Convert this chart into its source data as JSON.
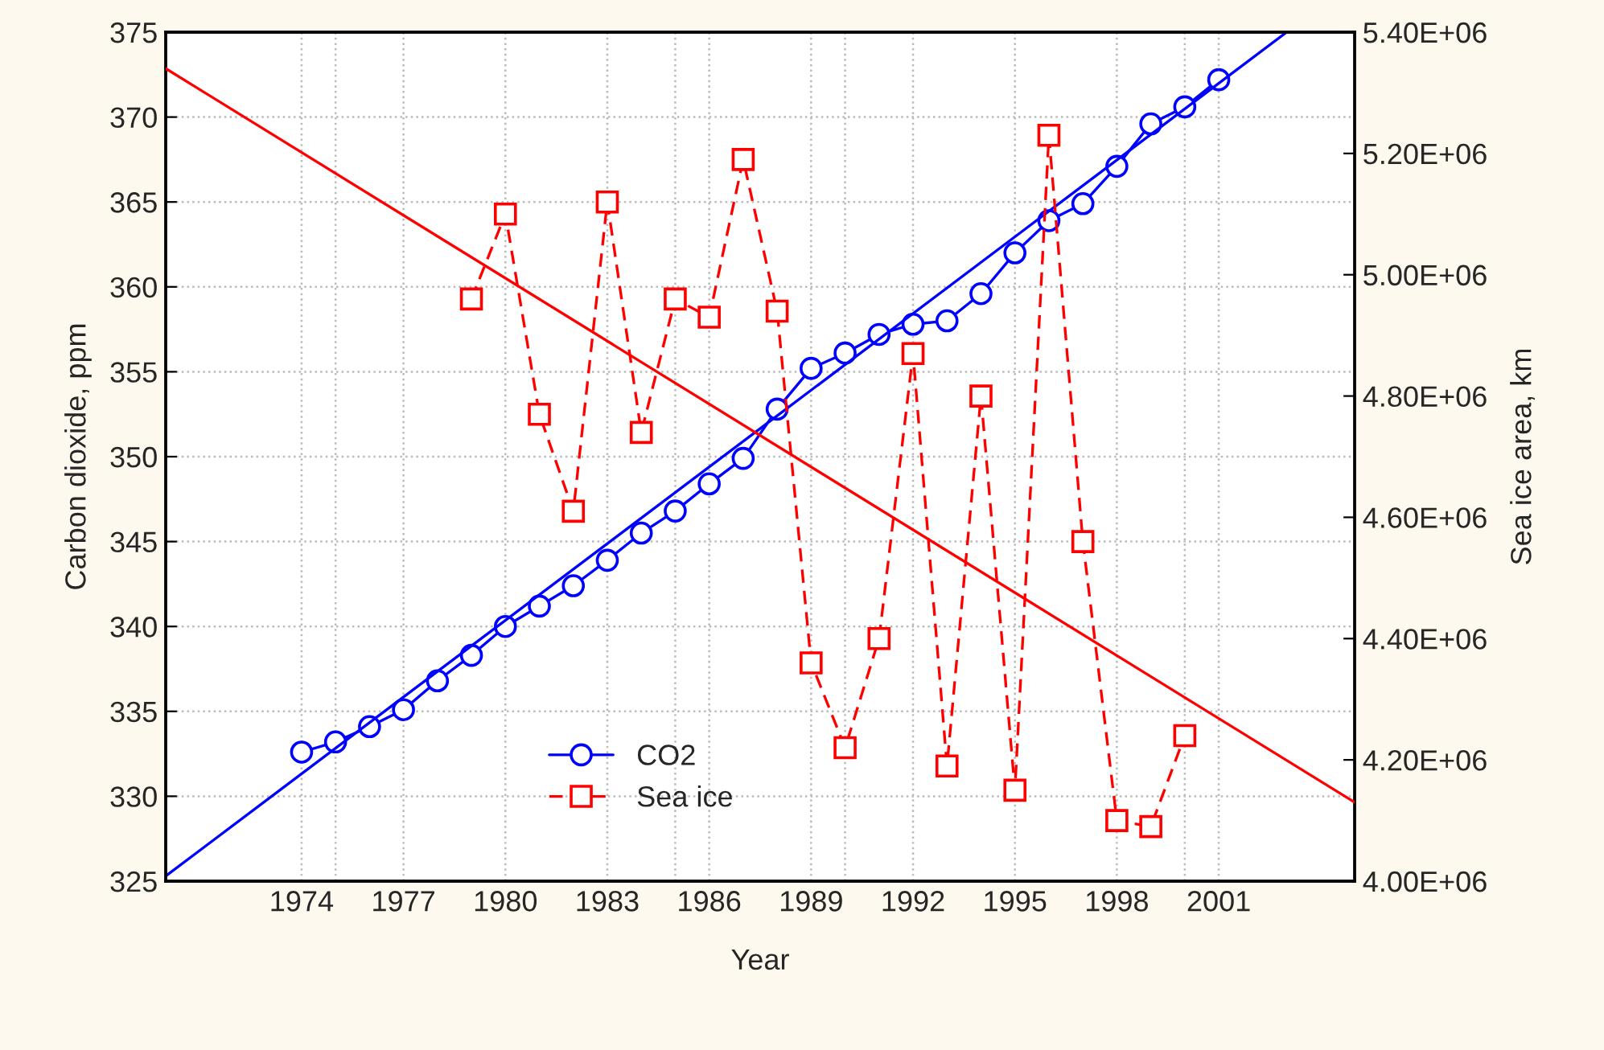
{
  "chart_data": {
    "type": "line",
    "xlabel": "Year",
    "ylabel": "Carbon dioxide, ppm",
    "y2label": "Sea ice area, km",
    "xlim": [
      1970,
      2005
    ],
    "xticks": [
      1974,
      1977,
      1980,
      1983,
      1986,
      1989,
      1992,
      1995,
      1998,
      2001,
      {
        "value": 1975,
        "label": null
      },
      {
        "value": 1985,
        "label": null
      },
      {
        "value": 1990,
        "label": null
      },
      {
        "value": 2000,
        "label": null
      }
    ],
    "ylim": [
      325,
      375
    ],
    "yticks": [
      325,
      330,
      335,
      340,
      345,
      350,
      355,
      360,
      365,
      370,
      375
    ],
    "y2lim": [
      4000000,
      5400000
    ],
    "y2ticks": [
      {
        "value": 4000000,
        "label": "4.00E+06"
      },
      {
        "value": 4200000,
        "label": "4.20E+06"
      },
      {
        "value": 4400000,
        "label": "4.40E+06"
      },
      {
        "value": 4600000,
        "label": "4.60E+06"
      },
      {
        "value": 4800000,
        "label": "4.80E+06"
      },
      {
        "value": 5000000,
        "label": "5.00E+06"
      },
      {
        "value": 5200000,
        "label": "5.20E+06"
      },
      {
        "value": 5400000,
        "label": "5.40E+06"
      }
    ],
    "grid": true,
    "legend": "bottom",
    "series": [
      {
        "name": "CO2",
        "color": "#0000ff",
        "marker": "circle",
        "line_style": "solid",
        "x": [
          1974,
          1975,
          1976,
          1977,
          1978,
          1979,
          1980,
          1981,
          1982,
          1983,
          1984,
          1985,
          1986,
          1987,
          1988,
          1989,
          1990,
          1991,
          1992,
          1993,
          1994,
          1995,
          1996,
          1997,
          1998,
          1999,
          2000,
          2001
        ],
        "values": [
          332.6,
          333.2,
          334.1,
          335.1,
          336.8,
          338.3,
          340.0,
          341.2,
          342.4,
          343.9,
          345.5,
          346.8,
          348.4,
          349.9,
          352.8,
          355.2,
          356.1,
          357.2,
          357.8,
          358.0,
          359.6,
          362.0,
          363.9,
          364.9,
          367.1,
          369.6,
          370.6,
          372.2
        ]
      },
      {
        "color": "#0000ff",
        "marker": "none",
        "line_style": "solid",
        "x": [
          1970,
          2003
        ],
        "values": [
          325.3,
          375
        ]
      },
      {
        "name": "Sea ice",
        "axis": "y2",
        "color": "#ff0000",
        "marker": "square",
        "line_style": "dashed",
        "x": [
          1979,
          1980,
          1981,
          1982,
          1983,
          1984,
          1985,
          1986,
          1987,
          1988,
          1989,
          1990,
          1991,
          1992,
          1993,
          1994,
          1995,
          1996,
          1997,
          1998,
          1999,
          2000
        ],
        "values": [
          4960000,
          5100000,
          4770000,
          4610000,
          5120000,
          4740000,
          4960000,
          4930000,
          5190000,
          4940000,
          4360000,
          4220000,
          4400000,
          4870000,
          4190000,
          4800000,
          4150000,
          5230000,
          4560000,
          4100000,
          4090000,
          4240000
        ]
      },
      {
        "axis": "y2",
        "color": "#ff0000",
        "marker": "none",
        "line_style": "solid",
        "x": [
          1970,
          2005
        ],
        "values": [
          5340000,
          4130000
        ]
      }
    ]
  }
}
